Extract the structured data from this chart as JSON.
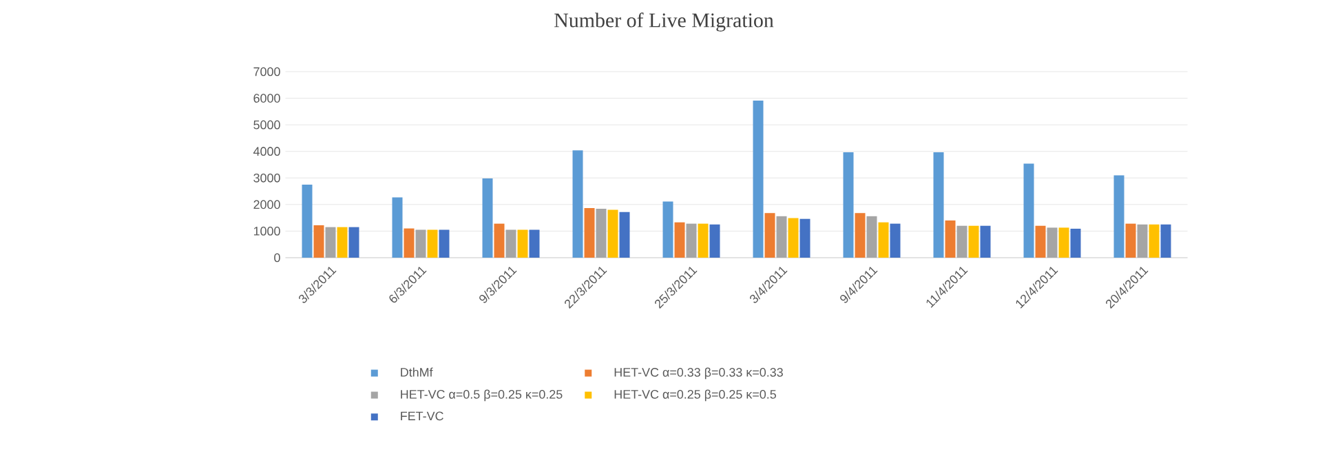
{
  "chart_data": {
    "type": "bar",
    "title": "Number of Live Migration",
    "categories": [
      "3/3/2011",
      "6/3/2011",
      "9/3/2011",
      "22/3/2011",
      "25/3/2011",
      "3/4/2011",
      "9/4/2011",
      "11/4/2011",
      "12/4/2011",
      "20/4/2011"
    ],
    "series": [
      {
        "name": "DthMf",
        "color": "#5b9bd5",
        "values": [
          2750,
          2270,
          2980,
          4040,
          2110,
          5910,
          3970,
          3970,
          3540,
          3100
        ]
      },
      {
        "name": "HET-VC α=0.33 β=0.33 κ=0.33",
        "color": "#ed7d31",
        "values": [
          1220,
          1100,
          1280,
          1870,
          1330,
          1680,
          1680,
          1400,
          1200,
          1280
        ]
      },
      {
        "name": "HET-VC α=0.5 β=0.25 κ=0.25",
        "color": "#a5a5a5",
        "values": [
          1150,
          1050,
          1050,
          1840,
          1280,
          1560,
          1560,
          1200,
          1130,
          1250
        ]
      },
      {
        "name": "HET-VC α=0.25 β=0.25 κ=0.5",
        "color": "#ffc000",
        "values": [
          1150,
          1050,
          1050,
          1800,
          1280,
          1490,
          1330,
          1200,
          1130,
          1250
        ]
      },
      {
        "name": "FET-VC",
        "color": "#4472c4",
        "values": [
          1150,
          1050,
          1050,
          1720,
          1250,
          1460,
          1280,
          1200,
          1090,
          1250
        ]
      }
    ],
    "ylim": [
      0,
      7000
    ],
    "yticks": [
      0,
      1000,
      2000,
      3000,
      4000,
      5000,
      6000,
      7000
    ],
    "grid": "y",
    "legend": "bottom"
  }
}
